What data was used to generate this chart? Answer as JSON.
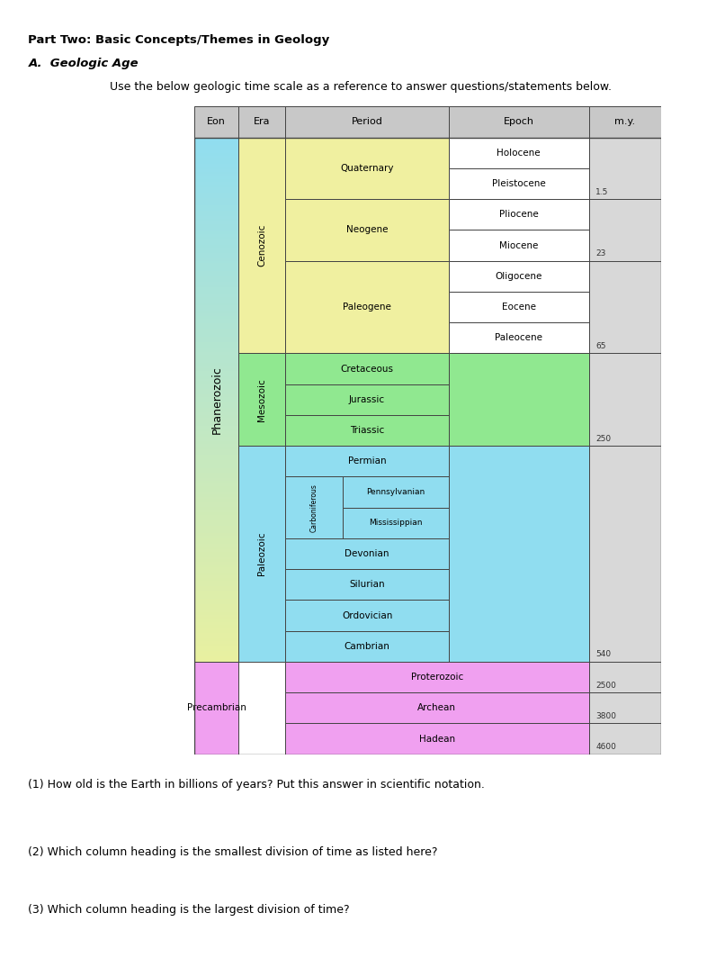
{
  "title": "Part Two: Basic Concepts/Themes in Geology",
  "subtitle_italic": "A.  Geologic Age",
  "subtitle_normal": "Use the below geologic time scale as a reference to answer questions/statements below.",
  "question1": "(1) How old is the Earth in billions of years? Put this answer in scientific notation.",
  "question2": "(2) Which column heading is the smallest division of time as listed here?",
  "question3": "(3) Which column heading is the largest division of time?",
  "colors": {
    "cenozoic_era": "#f0f0a0",
    "mesozoic_era": "#90e890",
    "paleozoic_era": "#90ddf0",
    "precambrian_eon": "#f0a0f0",
    "epoch_col_cenozoic": "#ffffff",
    "epoch_col_meso": "#90e890",
    "epoch_col_paleo": "#90ddf0",
    "epoch_col_precambrian": "#f0a0f0",
    "my_col": "#d8d8d8",
    "header": "#c8c8c8",
    "border": "#444444",
    "phanerozoic_top": "#e8f0a0",
    "phanerozoic_bottom": "#90ddf0"
  },
  "my_ticks": [
    {
      "row": 1,
      "label": "1.5",
      "side": "right"
    },
    {
      "row": 3,
      "label": "23",
      "side": "right"
    },
    {
      "row": 6,
      "label": "65",
      "side": "right"
    },
    {
      "row": 9,
      "label": "250",
      "side": "right"
    },
    {
      "row": 16,
      "label": "540",
      "side": "right"
    },
    {
      "row": 17,
      "label": "2500",
      "side": "right"
    },
    {
      "row": 18,
      "label": "3800",
      "side": "right"
    },
    {
      "row": 19,
      "label": "4600",
      "side": "right"
    }
  ]
}
